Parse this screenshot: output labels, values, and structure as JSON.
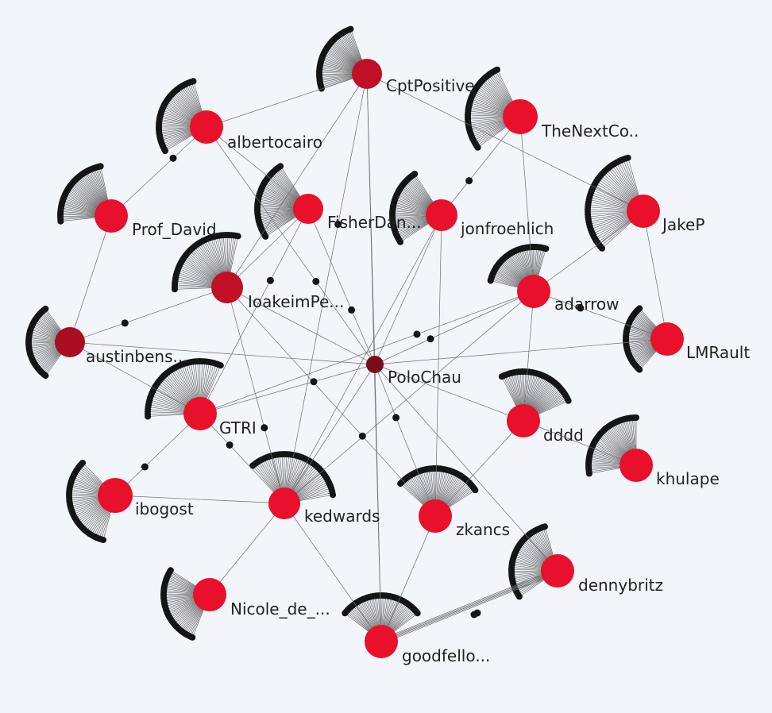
{
  "colors": {
    "background": "#f2f5fa",
    "hub_red": "#e8102a",
    "hub_dark_red": "#c10f25",
    "center_node": "#7a0c1c",
    "leaf": "#151515",
    "edge": "#6f6f6f"
  },
  "center": {
    "id": "polochau",
    "label": "PoloChau"
  },
  "hubs": [
    {
      "id": "cptpositive",
      "label": "CptPositive"
    },
    {
      "id": "albertocairo",
      "label": "albertocairo"
    },
    {
      "id": "thenextco",
      "label": "TheNextCo.."
    },
    {
      "id": "profdavid",
      "label": "Prof_David..."
    },
    {
      "id": "fisherdan",
      "label": "FisherDan..."
    },
    {
      "id": "jonfroehlich",
      "label": "jonfroehlich"
    },
    {
      "id": "jakep",
      "label": "JakeP"
    },
    {
      "id": "ioakeimpe",
      "label": "IoakeimPe..."
    },
    {
      "id": "adarrow",
      "label": "adarrow"
    },
    {
      "id": "austinbens",
      "label": "austinbens..."
    },
    {
      "id": "lmrault",
      "label": "LMRault"
    },
    {
      "id": "gtri",
      "label": "GTRI"
    },
    {
      "id": "dddd",
      "label": "dddd"
    },
    {
      "id": "khulape",
      "label": "khulape"
    },
    {
      "id": "ibogost",
      "label": "ibogost"
    },
    {
      "id": "kedwards",
      "label": "kedwards"
    },
    {
      "id": "zkancs",
      "label": "zkancs"
    },
    {
      "id": "dennybritz",
      "label": "dennybritz"
    },
    {
      "id": "nicolede",
      "label": "Nicole_de_..."
    },
    {
      "id": "goodfello",
      "label": "goodfello..."
    }
  ],
  "edges": [
    [
      "polochau",
      "cptpositive"
    ],
    [
      "polochau",
      "fisherdan"
    ],
    [
      "polochau",
      "jonfroehlich"
    ],
    [
      "polochau",
      "ioakeimpe"
    ],
    [
      "polochau",
      "adarrow"
    ],
    [
      "polochau",
      "austinbens"
    ],
    [
      "polochau",
      "lmrault"
    ],
    [
      "polochau",
      "gtri"
    ],
    [
      "polochau",
      "dddd"
    ],
    [
      "polochau",
      "kedwards"
    ],
    [
      "polochau",
      "zkancs"
    ],
    [
      "polochau",
      "dennybritz"
    ],
    [
      "polochau",
      "goodfello"
    ],
    [
      "polochau",
      "albertocairo"
    ],
    [
      "cptpositive",
      "albertocairo"
    ],
    [
      "cptpositive",
      "jakep"
    ],
    [
      "cptpositive",
      "kedwards"
    ],
    [
      "cptpositive",
      "ioakeimpe"
    ],
    [
      "cptpositive",
      "goodfello"
    ],
    [
      "albertocairo",
      "profdavid"
    ],
    [
      "albertocairo",
      "fisherdan"
    ],
    [
      "profdavid",
      "austinbens"
    ],
    [
      "austinbens",
      "ioakeimpe"
    ],
    [
      "austinbens",
      "gtri"
    ],
    [
      "fisherdan",
      "ioakeimpe"
    ],
    [
      "fisherdan",
      "gtri"
    ],
    [
      "jonfroehlich",
      "kedwards"
    ],
    [
      "jonfroehlich",
      "zkancs"
    ],
    [
      "jonfroehlich",
      "thenextco"
    ],
    [
      "jakep",
      "adarrow"
    ],
    [
      "jakep",
      "lmrault"
    ],
    [
      "adarrow",
      "lmrault"
    ],
    [
      "adarrow",
      "kedwards"
    ],
    [
      "adarrow",
      "dddd"
    ],
    [
      "adarrow",
      "gtri"
    ],
    [
      "dddd",
      "khulape"
    ],
    [
      "dddd",
      "zkancs"
    ],
    [
      "ibogost",
      "gtri"
    ],
    [
      "ibogost",
      "kedwards"
    ],
    [
      "kedwards",
      "nicolede"
    ],
    [
      "kedwards",
      "ioakeimpe"
    ],
    [
      "kedwards",
      "goodfello"
    ],
    [
      "zkancs",
      "goodfello"
    ],
    [
      "zkancs",
      "ioakeimpe"
    ],
    [
      "dennybritz",
      "goodfello"
    ],
    [
      "thenextco",
      "adarrow"
    ],
    [
      "gtri",
      "kedwards"
    ]
  ]
}
